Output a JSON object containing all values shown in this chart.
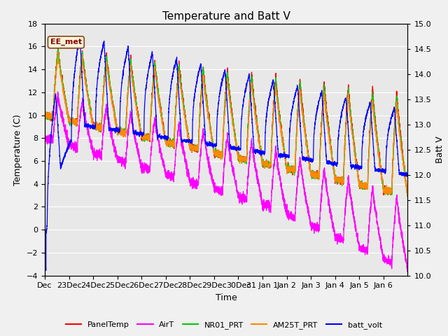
{
  "title": "Temperature and Batt V",
  "xlabel": "Time",
  "ylabel_left": "Temperature (C)",
  "ylabel_right": "Batt V",
  "annotation": "EE_met",
  "ylim_left": [
    -4,
    18
  ],
  "ylim_right": [
    10.0,
    15.0
  ],
  "yticks_left": [
    -4,
    -2,
    0,
    2,
    4,
    6,
    8,
    10,
    12,
    14,
    16,
    18
  ],
  "yticks_right": [
    10.0,
    10.5,
    11.0,
    11.5,
    12.0,
    12.5,
    13.0,
    13.5,
    14.0,
    14.5,
    15.0
  ],
  "xtick_positions": [
    0,
    1,
    2,
    3,
    4,
    5,
    6,
    7,
    8,
    9,
    10,
    11,
    12,
    13,
    14
  ],
  "xtick_labels": [
    "Dec",
    "23Dec",
    "24Dec",
    "25Dec",
    "26Dec",
    "27Dec",
    "28Dec",
    "29Dec",
    "30Dec",
    "31 Jan 1",
    "Jan 2",
    "Jan 3",
    "Jan 4",
    "Jan 5",
    "Jan 6"
  ],
  "legend_labels": [
    "PanelTemp",
    "AirT",
    "NR01_PRT",
    "AM25T_PRT",
    "batt_volt"
  ],
  "legend_colors": [
    "#ff0000",
    "#ff00ff",
    "#00cc00",
    "#ff8800",
    "#0000ff"
  ],
  "bg_color": "#e8e8e8",
  "fig_bg_color": "#f0f0f0",
  "grid_color": "#ffffff",
  "title_fontsize": 11,
  "axis_fontsize": 9,
  "tick_fontsize": 8,
  "linewidth": 0.9,
  "batt_v_min": 10.0,
  "batt_v_max": 15.0,
  "temp_min": -4,
  "temp_max": 18
}
